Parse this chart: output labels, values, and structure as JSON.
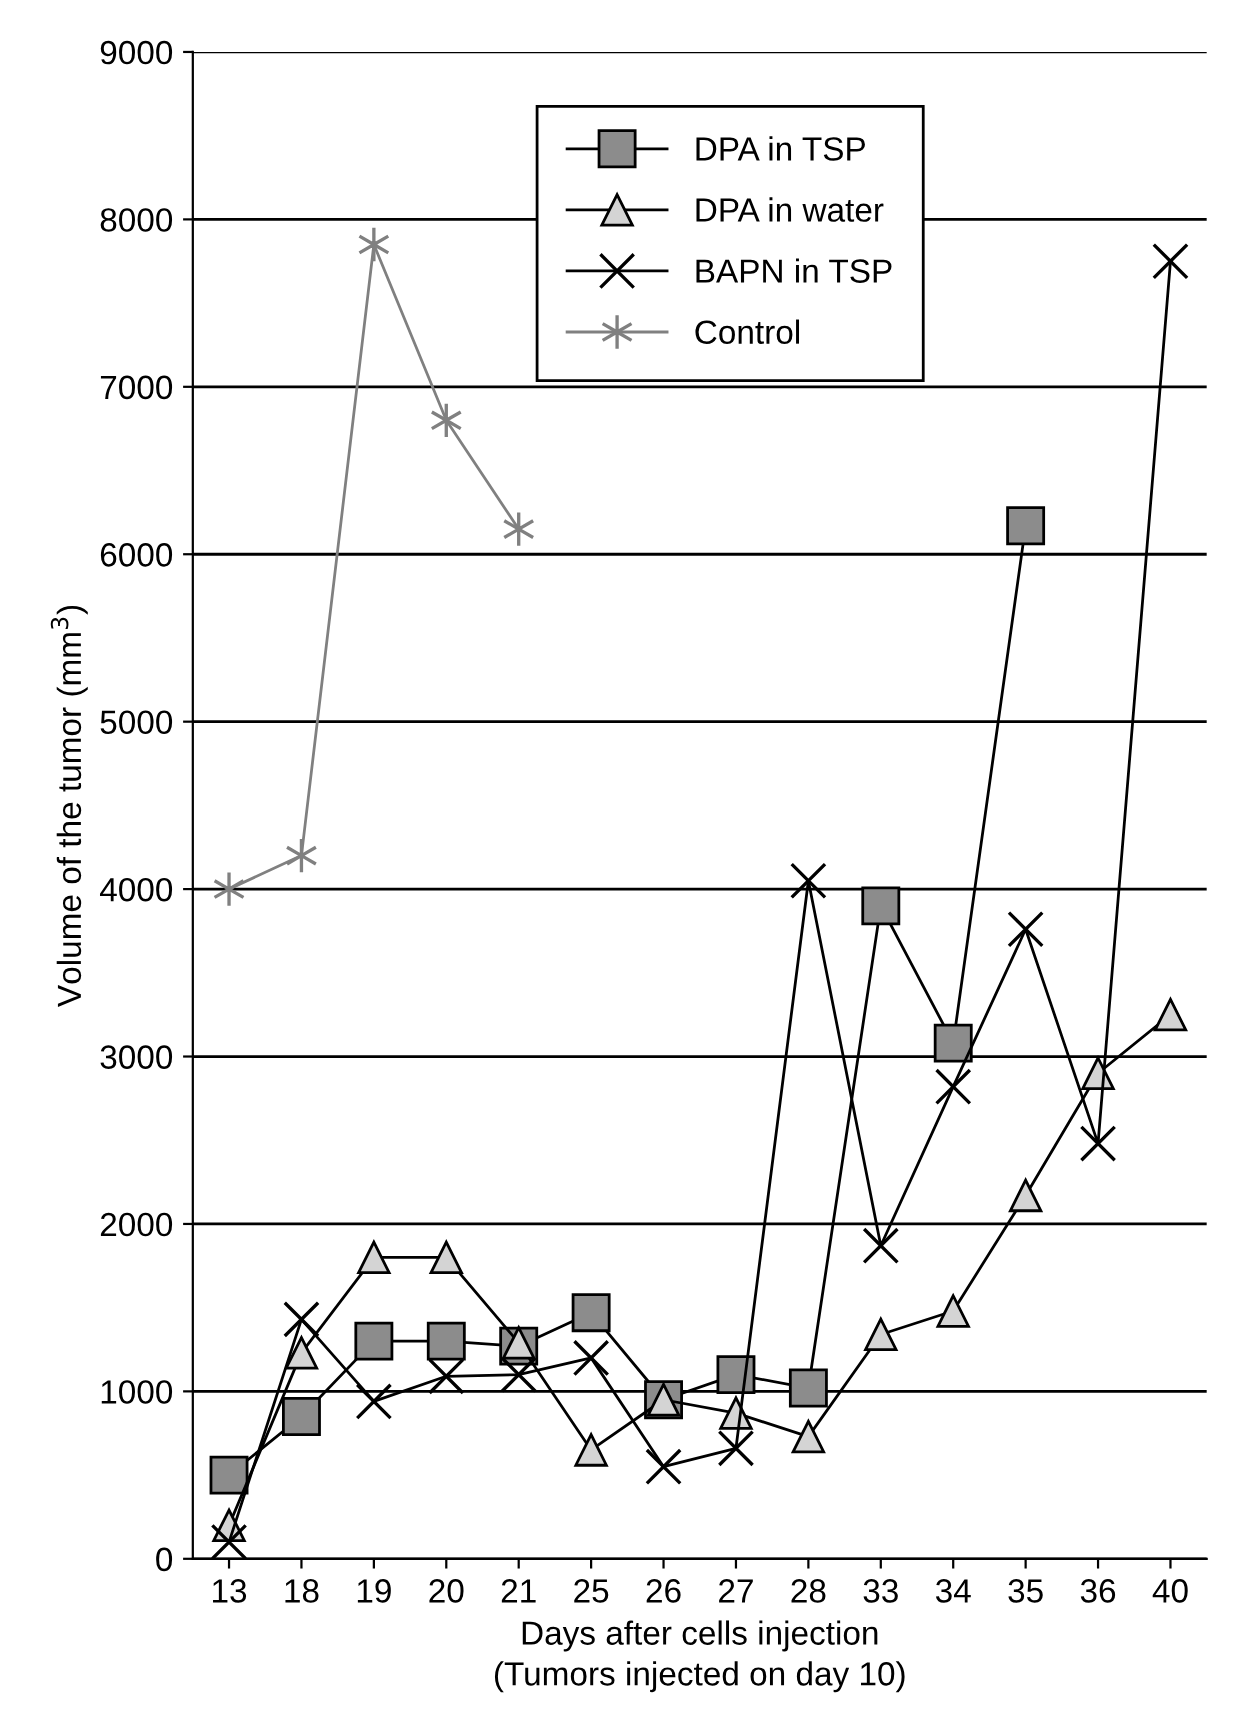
{
  "chart_data": {
    "type": "line",
    "xlabel": "Days after cells injection\n(Tumors injected on day 10)",
    "ylabel": "Volume of the tumor (mm$^{3}$)",
    "categories": [
      "13",
      "18",
      "19",
      "20",
      "21",
      "25",
      "26",
      "27",
      "28",
      "33",
      "34",
      "35",
      "36",
      "40"
    ],
    "series": [
      {
        "name": "DPA in TSP",
        "color": "#8c8c8c",
        "marker": "square",
        "values": [
          500,
          850,
          1300,
          1300,
          1270,
          1470,
          950,
          1100,
          1020,
          3900,
          3080,
          6170,
          null,
          null
        ]
      },
      {
        "name": "DPA in water",
        "color": "#d4d4d4",
        "marker": "triangle",
        "values": [
          200,
          1230,
          1800,
          1800,
          1290,
          650,
          950,
          870,
          730,
          1340,
          1480,
          2170,
          2900,
          3250
        ]
      },
      {
        "name": "BAPN in TSP",
        "color": "#000000",
        "marker": "cross",
        "values": [
          100,
          1430,
          940,
          1090,
          1100,
          1200,
          550,
          660,
          4050,
          1870,
          2820,
          3760,
          2480,
          7750
        ]
      },
      {
        "name": "Control",
        "color": "#808080",
        "marker": "cross",
        "values": [
          4000,
          4200,
          7850,
          6800,
          6150,
          null,
          null,
          null,
          null,
          null,
          null,
          null,
          null,
          null
        ]
      }
    ],
    "ylim": [
      0,
      9000
    ],
    "yticks": [
      0,
      1000,
      2000,
      3000,
      4000,
      5000,
      6000,
      7000,
      8000,
      9000
    ],
    "grid": "y",
    "legend": "top"
  }
}
